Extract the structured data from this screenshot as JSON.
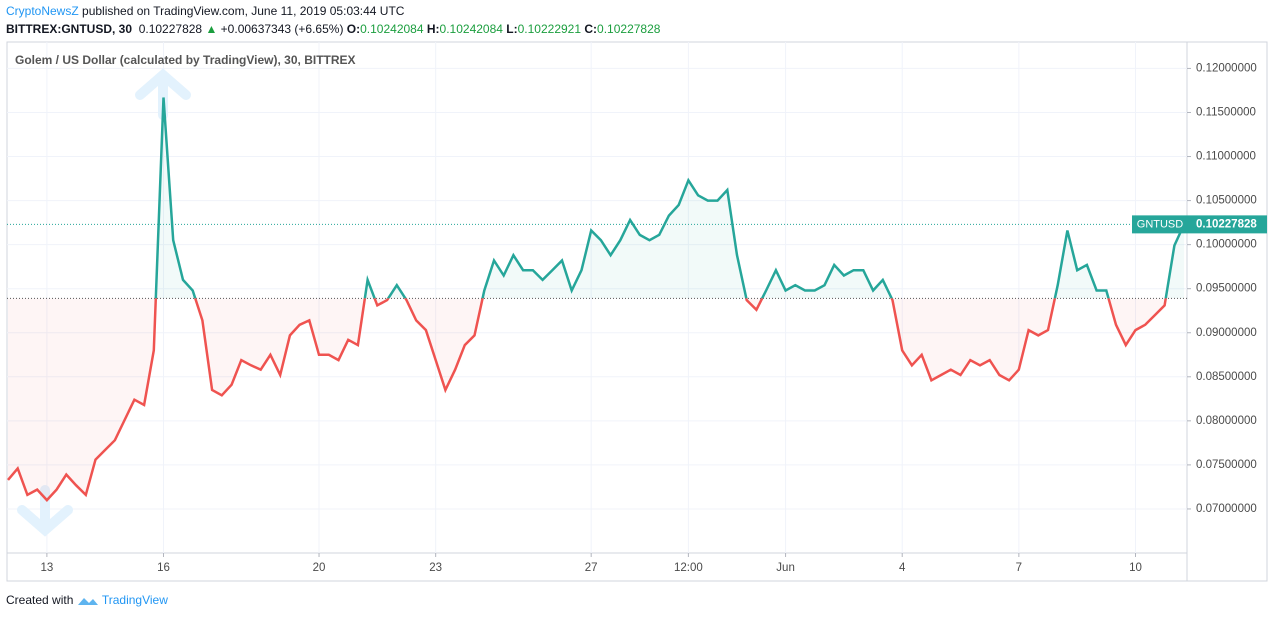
{
  "header": {
    "author": "CryptoNewsZ",
    "published": "published on TradingView.com, June 11, 2019 05:03:44 UTC",
    "symbol": "BITTREX:GNTUSD, 30",
    "price": "0.10227828",
    "arrow": "▲",
    "change": "+0.00637343 (+6.65%)",
    "o_label": "O:",
    "o": "0.10242084",
    "h_label": "H:",
    "h": "0.10242084",
    "l_label": "L:",
    "l": "0.10222921",
    "c_label": "C:",
    "c": "0.10227828"
  },
  "chart_data": {
    "type": "baseline",
    "title": "Golem / US Dollar (calculated by TradingView), 30, BITTREX",
    "series_name": "GNTUSD",
    "last_label": "0.10227828",
    "values": [
      0.0733,
      0.0746,
      0.0716,
      0.0722,
      0.071,
      0.0722,
      0.0739,
      0.0727,
      0.0716,
      0.0756,
      0.0767,
      0.0778,
      0.0801,
      0.0824,
      0.0818,
      0.088,
      0.1167,
      0.1005,
      0.096,
      0.0948,
      0.0914,
      0.0835,
      0.0829,
      0.0841,
      0.0869,
      0.0863,
      0.0858,
      0.0875,
      0.0852,
      0.0897,
      0.0909,
      0.0914,
      0.0875,
      0.0875,
      0.0869,
      0.0892,
      0.0886,
      0.096,
      0.0931,
      0.0937,
      0.0954,
      0.0937,
      0.0914,
      0.0903,
      0.0869,
      0.0835,
      0.0858,
      0.0886,
      0.0897,
      0.0948,
      0.0982,
      0.0965,
      0.0988,
      0.0971,
      0.0971,
      0.096,
      0.0971,
      0.0982,
      0.0948,
      0.0971,
      0.1016,
      0.1005,
      0.0988,
      0.1005,
      0.1028,
      0.1011,
      0.1005,
      0.1011,
      0.1033,
      0.1045,
      0.1073,
      0.1056,
      0.105,
      0.105,
      0.1062,
      0.0988,
      0.0937,
      0.0926,
      0.0948,
      0.0971,
      0.0948,
      0.0954,
      0.0948,
      0.0948,
      0.0954,
      0.0977,
      0.0965,
      0.0971,
      0.0971,
      0.0948,
      0.096,
      0.0937,
      0.088,
      0.0863,
      0.0875,
      0.0846,
      0.0852,
      0.0858,
      0.0852,
      0.0869,
      0.0863,
      0.0869,
      0.0852,
      0.0846,
      0.0858,
      0.0903,
      0.0897,
      0.0903,
      0.0954,
      0.1016,
      0.0971,
      0.0977,
      0.0948,
      0.0948,
      0.0909,
      0.0886,
      0.0903,
      0.0909,
      0.092,
      0.0931,
      0.0999,
      0.1023
    ],
    "baseline": 0.0939,
    "last": 0.1023,
    "up_color": "#26a69a",
    "down_color": "#ef5350",
    "xlim": [
      0,
      121.3
    ],
    "xticks": [
      {
        "value": 4,
        "label": "13"
      },
      {
        "value": 16,
        "label": "16"
      },
      {
        "value": 32,
        "label": "20"
      },
      {
        "value": 44,
        "label": "23"
      },
      {
        "value": 60,
        "label": "27"
      },
      {
        "value": 70,
        "label": "12:00"
      },
      {
        "value": 80,
        "label": "Jun"
      },
      {
        "value": 92,
        "label": "4"
      },
      {
        "value": 104,
        "label": "7"
      },
      {
        "value": 116,
        "label": "10"
      }
    ],
    "ylim": [
      0.065,
      0.123
    ],
    "yticks": [
      {
        "value": 0.07,
        "label": "0.07000000"
      },
      {
        "value": 0.075,
        "label": "0.07500000"
      },
      {
        "value": 0.08,
        "label": "0.08000000"
      },
      {
        "value": 0.085,
        "label": "0.08500000"
      },
      {
        "value": 0.09,
        "label": "0.09000000"
      },
      {
        "value": 0.095,
        "label": "0.09500000"
      },
      {
        "value": 0.1,
        "label": "0.10000000"
      },
      {
        "value": 0.105,
        "label": "0.10500000"
      },
      {
        "value": 0.11,
        "label": "0.11000000"
      },
      {
        "value": 0.115,
        "label": "0.11500000"
      },
      {
        "value": 0.12,
        "label": "0.12000000"
      }
    ],
    "grid": true
  },
  "footer": {
    "created": "Created with",
    "brand": "TradingView"
  }
}
